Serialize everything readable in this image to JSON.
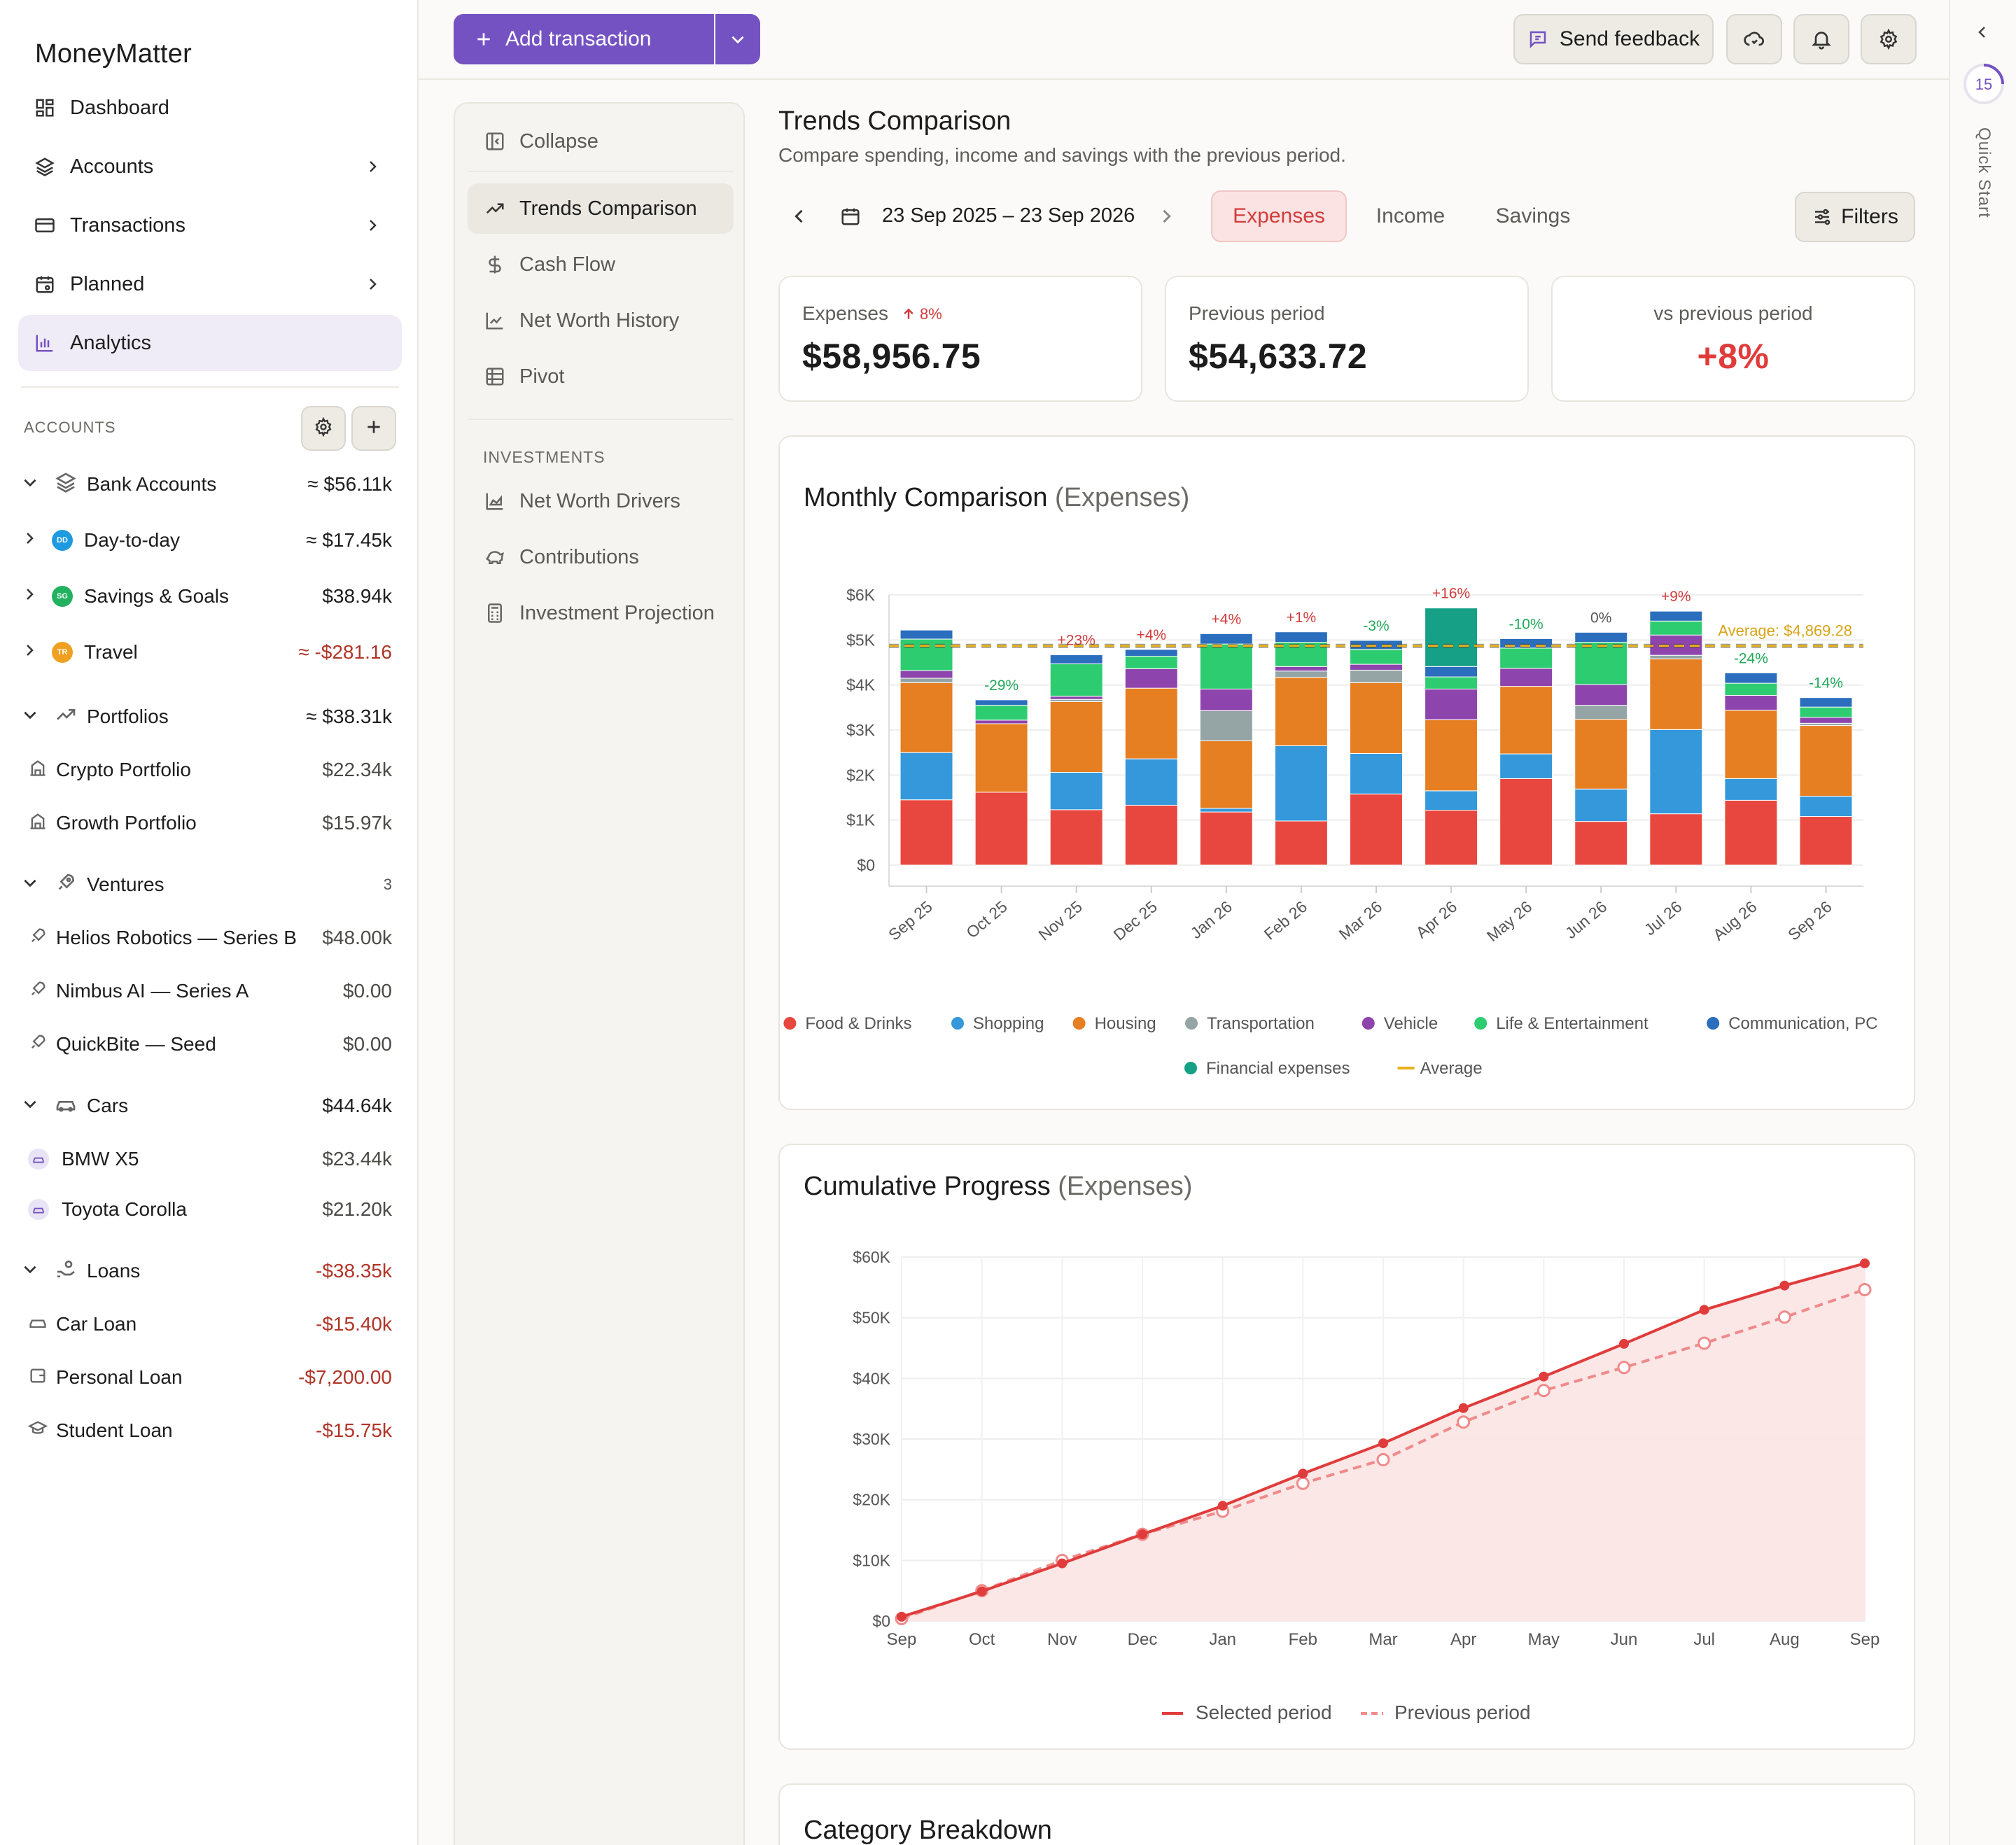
{
  "app": {
    "name": "MoneyMatter"
  },
  "nav": [
    {
      "label": "Dashboard",
      "icon": "dashboard-icon"
    },
    {
      "label": "Accounts",
      "icon": "layers-icon"
    },
    {
      "label": "Transactions",
      "icon": "card-icon"
    },
    {
      "label": "Planned",
      "icon": "calendar-icon"
    },
    {
      "label": "Analytics",
      "icon": "bar-chart-icon"
    }
  ],
  "accounts_section": {
    "label": "ACCOUNTS"
  },
  "groups": {
    "bank": {
      "label": "Bank Accounts",
      "value": "≈ $56.11k"
    },
    "day": {
      "label": "Day-to-day",
      "value": "≈ $17.45k",
      "badge": "DD"
    },
    "savings": {
      "label": "Savings & Goals",
      "value": "$38.94k",
      "badge": "SG"
    },
    "travel": {
      "label": "Travel",
      "value": "≈ -$281.16",
      "badge": "TR"
    },
    "portfolios": {
      "label": "Portfolios",
      "value": "≈ $38.31k"
    },
    "crypto": {
      "label": "Crypto Portfolio",
      "value": "$22.34k"
    },
    "growth": {
      "label": "Growth Portfolio",
      "value": "$15.97k"
    },
    "ventures": {
      "label": "Ventures",
      "value": "3"
    },
    "helios": {
      "label": "Helios Robotics — Series B",
      "value": "$48.00k"
    },
    "nimbus": {
      "label": "Nimbus AI — Series A",
      "value": "$0.00"
    },
    "quickbite": {
      "label": "QuickBite — Seed",
      "value": "$0.00"
    },
    "cars": {
      "label": "Cars",
      "value": "$44.64k"
    },
    "bmw": {
      "label": "BMW X5",
      "value": "$23.44k"
    },
    "toyota": {
      "label": "Toyota Corolla",
      "value": "$21.20k"
    },
    "loans": {
      "label": "Loans",
      "value": "-$38.35k"
    },
    "carloan": {
      "label": "Car Loan",
      "value": "-$15.40k"
    },
    "personal": {
      "label": "Personal Loan",
      "value": "-$7,200.00"
    },
    "student": {
      "label": "Student Loan",
      "value": "-$15.75k"
    }
  },
  "topbar": {
    "add_label": "Add transaction",
    "feedback_label": "Send feedback"
  },
  "rail": {
    "count": "15",
    "label": "Quick Start"
  },
  "subnav": {
    "collapse": "Collapse",
    "items": [
      "Trends Comparison",
      "Cash Flow",
      "Net Worth History",
      "Pivot"
    ],
    "investments_label": "INVESTMENTS",
    "inv_items": [
      "Net Worth Drivers",
      "Contributions",
      "Investment Projection"
    ]
  },
  "page": {
    "title": "Trends Comparison",
    "subtitle": "Compare spending, income and savings with the previous period.",
    "date_range": "23 Sep 2025 – 23 Sep 2026",
    "tabs": [
      "Expenses",
      "Income",
      "Savings"
    ],
    "filters": "Filters"
  },
  "stats": {
    "expenses": {
      "label": "Expenses",
      "delta": "8%",
      "value": "$58,956.75"
    },
    "previous": {
      "label": "Previous period",
      "value": "$54,633.72"
    },
    "vs": {
      "label": "vs previous period",
      "value": "+8%"
    }
  },
  "colors": {
    "accent": "#7552c2",
    "negative": "#d23c3c",
    "positive": "#22a85a"
  },
  "chart_data": [
    {
      "type": "bar",
      "title": "Monthly Comparison",
      "title_suffix": "(Expenses)",
      "stacked": true,
      "categories": [
        "Sep 25",
        "Oct 25",
        "Nov 25",
        "Dec 25",
        "Jan 26",
        "Feb 26",
        "Mar 26",
        "Apr 26",
        "May 26",
        "Jun 26",
        "Jul 26",
        "Aug 26",
        "Sep 26"
      ],
      "yticks": [
        "$0",
        "$1K",
        "$2K",
        "$3K",
        "$4K",
        "$5K",
        "$6K"
      ],
      "ylim": [
        0,
        6000
      ],
      "series": [
        {
          "name": "Food & Drinks",
          "color": "#e8473f",
          "values": [
            1450,
            1620,
            1230,
            1330,
            1180,
            980,
            1580,
            1220,
            1920,
            970,
            1140,
            1440,
            1080
          ]
        },
        {
          "name": "Shopping",
          "color": "#3498db",
          "values": [
            1050,
            0,
            830,
            1030,
            80,
            1670,
            900,
            430,
            550,
            720,
            1870,
            480,
            450
          ]
        },
        {
          "name": "Housing",
          "color": "#e67e22",
          "values": [
            1550,
            1520,
            1570,
            1570,
            1500,
            1520,
            1570,
            1580,
            1500,
            1550,
            1570,
            1520,
            1570
          ]
        },
        {
          "name": "Transportation",
          "color": "#95a5a6",
          "values": [
            100,
            0,
            50,
            0,
            670,
            140,
            280,
            0,
            0,
            310,
            80,
            0,
            50
          ]
        },
        {
          "name": "Vehicle",
          "color": "#8e44ad",
          "values": [
            170,
            80,
            70,
            430,
            480,
            100,
            130,
            680,
            400,
            460,
            450,
            330,
            130
          ]
        },
        {
          "name": "Life & Entertainment",
          "color": "#2ecc71",
          "values": [
            700,
            330,
            720,
            280,
            1000,
            540,
            330,
            270,
            450,
            940,
            310,
            270,
            230
          ]
        },
        {
          "name": "Communication, PC",
          "color": "#2a6ebd",
          "values": [
            200,
            120,
            200,
            150,
            230,
            230,
            200,
            230,
            210,
            220,
            220,
            230,
            210
          ]
        },
        {
          "name": "Financial expenses",
          "color": "#16a085",
          "values": [
            0,
            0,
            0,
            0,
            0,
            0,
            0,
            1300,
            0,
            0,
            0,
            0,
            0
          ]
        }
      ],
      "changes": [
        "",
        "-29%",
        "+23%",
        "+4%",
        "+4%",
        "+1%",
        "-3%",
        "+16%",
        "-10%",
        "0%",
        "+9%",
        "-24%",
        "-14%"
      ],
      "average": {
        "label": "Average",
        "annotation": "Average: $4,869.28",
        "value": 4869.28
      }
    },
    {
      "type": "line",
      "title": "Cumulative Progress",
      "title_suffix": "(Expenses)",
      "x": [
        "Sep",
        "Oct",
        "Nov",
        "Dec",
        "Jan",
        "Feb",
        "Mar",
        "Apr",
        "May",
        "Jun",
        "Jul",
        "Aug",
        "Sep"
      ],
      "yticks": [
        "$0",
        "$10K",
        "$20K",
        "$30K",
        "$40K",
        "$50K",
        "$60K"
      ],
      "ylim": [
        0,
        60000
      ],
      "series": [
        {
          "name": "Selected period",
          "color": "#e03c3c",
          "values": [
            700,
            4900,
            9500,
            14300,
            19000,
            24300,
            29300,
            35100,
            40300,
            45700,
            51300,
            55300,
            58957
          ]
        },
        {
          "name": "Previous period",
          "color": "#f08a8a",
          "values": [
            400,
            5000,
            10000,
            14300,
            18100,
            22700,
            26600,
            32800,
            38000,
            41800,
            45800,
            50100,
            54634
          ]
        }
      ]
    }
  ],
  "category_breakdown": {
    "title": "Category Breakdown"
  }
}
